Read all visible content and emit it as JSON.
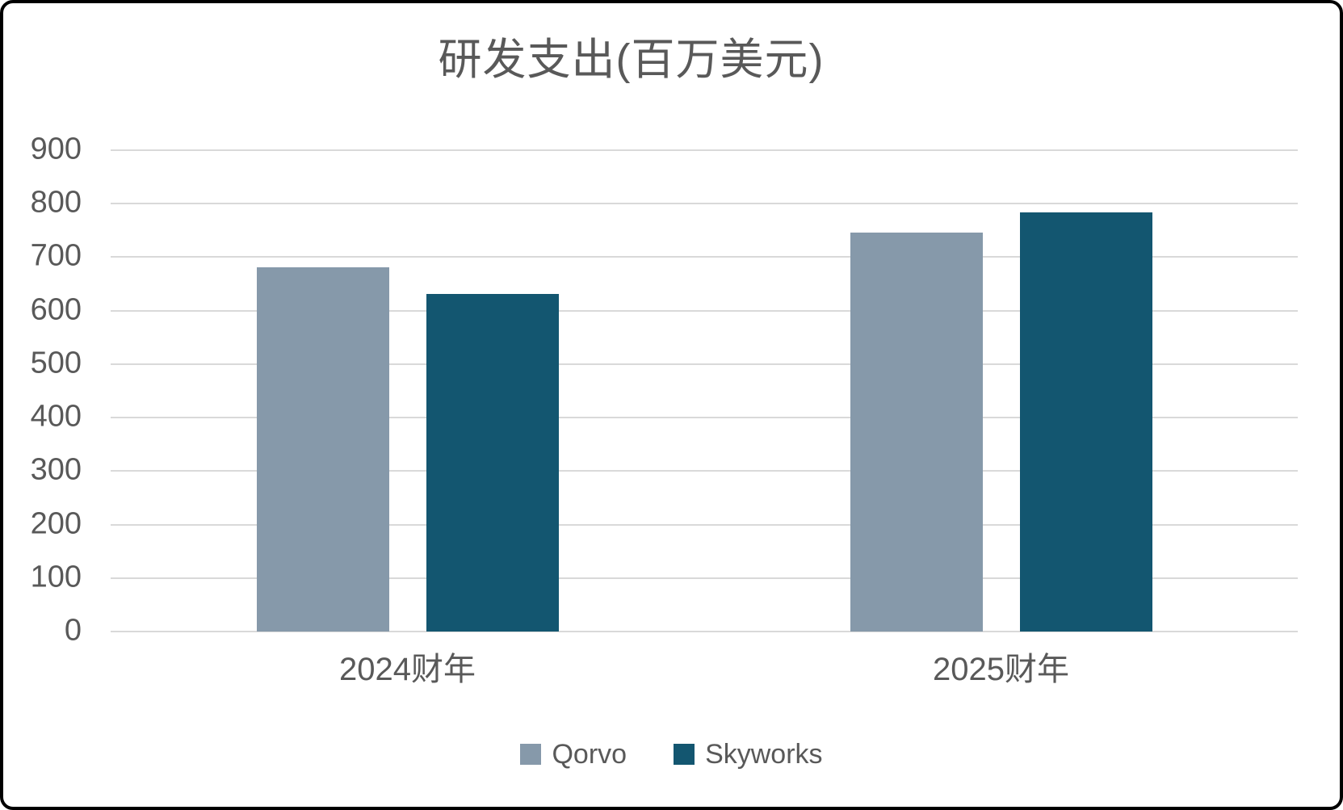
{
  "frame": {
    "background_color": "#FFFFFF",
    "border_color": "#000000"
  },
  "chart_data": {
    "type": "bar",
    "title": "研发支出(百万美元)",
    "categories": [
      "2024财年",
      "2025财年"
    ],
    "series": [
      {
        "name": "Qorvo",
        "color": "#8699AA",
        "values": [
          681,
          746
        ]
      },
      {
        "name": "Skyworks",
        "color": "#135670",
        "values": [
          631,
          784
        ]
      }
    ],
    "xlabel": "",
    "ylabel": "",
    "ylim": [
      0,
      900
    ],
    "yticks": [
      0,
      100,
      200,
      300,
      400,
      500,
      600,
      700,
      800,
      900
    ],
    "grid": true,
    "gridline_color": "#D9D9D9",
    "text_color": "#595959",
    "legend_position": "bottom"
  }
}
